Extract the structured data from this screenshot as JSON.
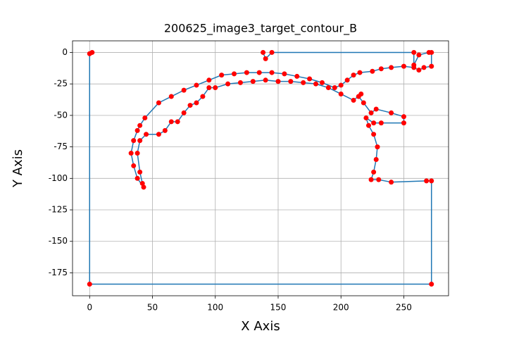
{
  "chart_data": {
    "type": "line",
    "title": "200625_image3_target_contour_B",
    "x_label": "X Axis",
    "y_label": "Y Axis",
    "xlim": [
      -13.6,
      285.6
    ],
    "ylim": [
      -193.2,
      9.2
    ],
    "xticks": [
      0,
      50,
      100,
      150,
      200,
      250
    ],
    "yticks": [
      0,
      -25,
      -50,
      -75,
      -100,
      -125,
      -150,
      -175
    ],
    "grid": true,
    "x": [
      2,
      0,
      0,
      272,
      272,
      268,
      240,
      230,
      224,
      226,
      228,
      229,
      226,
      222,
      220,
      226,
      232,
      250,
      250,
      240,
      228,
      224,
      218,
      214,
      216,
      210,
      200,
      190,
      180,
      170,
      160,
      150,
      140,
      130,
      120,
      110,
      100,
      95,
      90,
      85,
      80,
      75,
      70,
      65,
      60,
      55,
      45,
      40,
      38,
      40,
      42,
      43,
      38,
      35,
      33,
      35,
      38,
      40,
      44,
      55,
      65,
      75,
      85,
      95,
      105,
      115,
      125,
      135,
      145,
      155,
      165,
      175,
      185,
      195,
      200,
      205,
      210,
      215,
      225,
      232,
      240,
      250,
      258,
      262,
      266,
      272,
      272,
      270,
      262,
      258,
      258,
      145,
      140,
      138
    ],
    "series": [
      {
        "color": "#1f77b4",
        "marker_color": "#ff0000",
        "values": [
          0,
          -1,
          -184,
          -184,
          -102,
          -102,
          -103,
          -101,
          -101,
          -95,
          -85,
          -75,
          -65,
          -58,
          -52,
          -56,
          -56,
          -56,
          -51,
          -48,
          -45,
          -48,
          -40,
          -35,
          -33,
          -38,
          -33,
          -28,
          -25,
          -24,
          -23,
          -23,
          -22,
          -23,
          -24,
          -25,
          -28,
          -28,
          -35,
          -40,
          -42,
          -48,
          -55,
          -55,
          -62,
          -65,
          -65,
          -70,
          -80,
          -95,
          -104,
          -107,
          -100,
          -90,
          -80,
          -70,
          -62,
          -58,
          -52,
          -40,
          -35,
          -30,
          -26,
          -22,
          -18,
          -17,
          -16,
          -16,
          -16,
          -17,
          -19,
          -21,
          -24,
          -28,
          -26,
          -22,
          -18,
          -16,
          -15,
          -13,
          -12,
          -11,
          -12,
          -14,
          -12,
          -11,
          0,
          0,
          -2,
          -10,
          0,
          0,
          -5,
          0
        ]
      }
    ]
  }
}
